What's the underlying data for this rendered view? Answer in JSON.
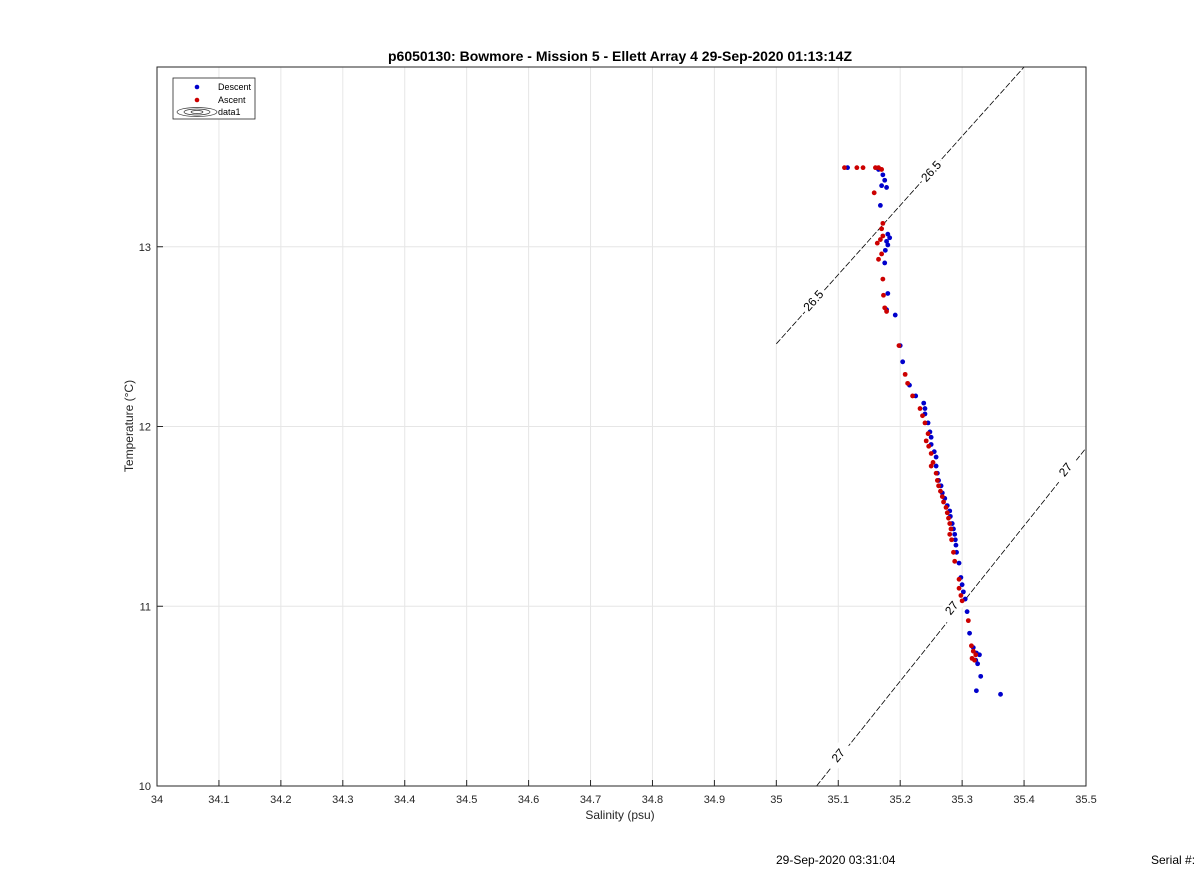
{
  "chart_data": {
    "type": "scatter",
    "title": "p6050130: Bowmore - Mission 5 - Ellett Array 4 29-Sep-2020 01:13:14Z",
    "xlabel": "Salinity (psu)",
    "ylabel": "Temperature (°C)",
    "xlim": [
      34,
      35.5
    ],
    "ylim": [
      10,
      14
    ],
    "xticks": [
      34,
      34.1,
      34.2,
      34.3,
      34.4,
      34.5,
      34.6,
      34.7,
      34.8,
      34.9,
      35,
      35.1,
      35.2,
      35.3,
      35.4,
      35.5
    ],
    "xtick_labels": [
      "34",
      "34.1",
      "34.2",
      "34.3",
      "34.4",
      "34.5",
      "34.6",
      "34.7",
      "34.8",
      "34.9",
      "35",
      "35.1",
      "35.2",
      "35.3",
      "35.4",
      "35.5"
    ],
    "yticks": [
      10,
      11,
      12,
      13
    ],
    "ytick_labels": [
      "10",
      "11",
      "12",
      "13"
    ],
    "grid": true,
    "legend_position": "top-left",
    "legend": [
      "Descent",
      "Ascent",
      "data1"
    ],
    "series": [
      {
        "name": "Descent",
        "color": "#0000cc",
        "points": [
          [
            35.115,
            13.44
          ],
          [
            35.165,
            13.43
          ],
          [
            35.172,
            13.4
          ],
          [
            35.175,
            13.37
          ],
          [
            35.17,
            13.34
          ],
          [
            35.178,
            13.33
          ],
          [
            35.168,
            13.23
          ],
          [
            35.18,
            13.07
          ],
          [
            35.183,
            13.05
          ],
          [
            35.178,
            13.03
          ],
          [
            35.18,
            13.01
          ],
          [
            35.176,
            12.98
          ],
          [
            35.175,
            12.91
          ],
          [
            35.18,
            12.74
          ],
          [
            35.178,
            12.65
          ],
          [
            35.192,
            12.62
          ],
          [
            35.2,
            12.45
          ],
          [
            35.204,
            12.36
          ],
          [
            35.215,
            12.23
          ],
          [
            35.225,
            12.17
          ],
          [
            35.238,
            12.13
          ],
          [
            35.24,
            12.1
          ],
          [
            35.24,
            12.07
          ],
          [
            35.245,
            12.02
          ],
          [
            35.248,
            11.97
          ],
          [
            35.25,
            11.94
          ],
          [
            35.25,
            11.9
          ],
          [
            35.255,
            11.86
          ],
          [
            35.258,
            11.83
          ],
          [
            35.258,
            11.78
          ],
          [
            35.26,
            11.74
          ],
          [
            35.262,
            11.7
          ],
          [
            35.266,
            11.67
          ],
          [
            35.268,
            11.63
          ],
          [
            35.272,
            11.6
          ],
          [
            35.276,
            11.56
          ],
          [
            35.28,
            11.53
          ],
          [
            35.281,
            11.5
          ],
          [
            35.284,
            11.46
          ],
          [
            35.286,
            11.43
          ],
          [
            35.288,
            11.4
          ],
          [
            35.289,
            11.37
          ],
          [
            35.29,
            11.34
          ],
          [
            35.291,
            11.3
          ],
          [
            35.295,
            11.24
          ],
          [
            35.298,
            11.16
          ],
          [
            35.3,
            11.12
          ],
          [
            35.302,
            11.08
          ],
          [
            35.305,
            11.04
          ],
          [
            35.308,
            10.97
          ],
          [
            35.312,
            10.85
          ],
          [
            35.318,
            10.77
          ],
          [
            35.323,
            10.74
          ],
          [
            35.328,
            10.73
          ],
          [
            35.322,
            10.7
          ],
          [
            35.325,
            10.68
          ],
          [
            35.33,
            10.61
          ],
          [
            35.362,
            10.51
          ],
          [
            35.323,
            10.53
          ]
        ]
      },
      {
        "name": "Ascent",
        "color": "#cc0000",
        "points": [
          [
            35.11,
            13.44
          ],
          [
            35.13,
            13.44
          ],
          [
            35.14,
            13.44
          ],
          [
            35.16,
            13.44
          ],
          [
            35.165,
            13.44
          ],
          [
            35.17,
            13.43
          ],
          [
            35.158,
            13.3
          ],
          [
            35.172,
            13.13
          ],
          [
            35.17,
            13.1
          ],
          [
            35.172,
            13.06
          ],
          [
            35.168,
            13.04
          ],
          [
            35.163,
            13.02
          ],
          [
            35.17,
            12.96
          ],
          [
            35.165,
            12.93
          ],
          [
            35.172,
            12.82
          ],
          [
            35.173,
            12.73
          ],
          [
            35.175,
            12.66
          ],
          [
            35.178,
            12.64
          ],
          [
            35.198,
            12.45
          ],
          [
            35.208,
            12.29
          ],
          [
            35.212,
            12.24
          ],
          [
            35.22,
            12.17
          ],
          [
            35.232,
            12.1
          ],
          [
            35.236,
            12.06
          ],
          [
            35.24,
            12.02
          ],
          [
            35.245,
            11.96
          ],
          [
            35.242,
            11.92
          ],
          [
            35.246,
            11.89
          ],
          [
            35.25,
            11.85
          ],
          [
            35.253,
            11.8
          ],
          [
            35.25,
            11.78
          ],
          [
            35.258,
            11.74
          ],
          [
            35.26,
            11.7
          ],
          [
            35.262,
            11.67
          ],
          [
            35.265,
            11.64
          ],
          [
            35.268,
            11.61
          ],
          [
            35.27,
            11.58
          ],
          [
            35.274,
            11.55
          ],
          [
            35.276,
            11.52
          ],
          [
            35.278,
            11.49
          ],
          [
            35.28,
            11.46
          ],
          [
            35.282,
            11.43
          ],
          [
            35.28,
            11.4
          ],
          [
            35.283,
            11.37
          ],
          [
            35.286,
            11.3
          ],
          [
            35.288,
            11.25
          ],
          [
            35.295,
            11.15
          ],
          [
            35.295,
            11.1
          ],
          [
            35.298,
            11.06
          ],
          [
            35.3,
            11.03
          ],
          [
            35.31,
            10.92
          ],
          [
            35.315,
            10.78
          ],
          [
            35.318,
            10.75
          ],
          [
            35.322,
            10.73
          ],
          [
            35.316,
            10.71
          ],
          [
            35.32,
            10.7
          ]
        ]
      }
    ],
    "contours": [
      {
        "level_label": "26.5",
        "line": [
          [
            35.0,
            12.46
          ],
          [
            35.4,
            14.0
          ]
        ],
        "labels": [
          [
            35.06,
            12.7
          ],
          [
            35.25,
            13.42
          ]
        ]
      },
      {
        "level_label": "27",
        "line": [
          [
            35.065,
            10.0
          ],
          [
            35.5,
            11.88
          ]
        ],
        "labels": [
          [
            35.1,
            10.17
          ],
          [
            35.283,
            10.99
          ],
          [
            35.467,
            11.76
          ]
        ]
      }
    ]
  },
  "footer": {
    "timestamp": "29-Sep-2020 03:31:04",
    "serial_label": "Serial #:"
  }
}
